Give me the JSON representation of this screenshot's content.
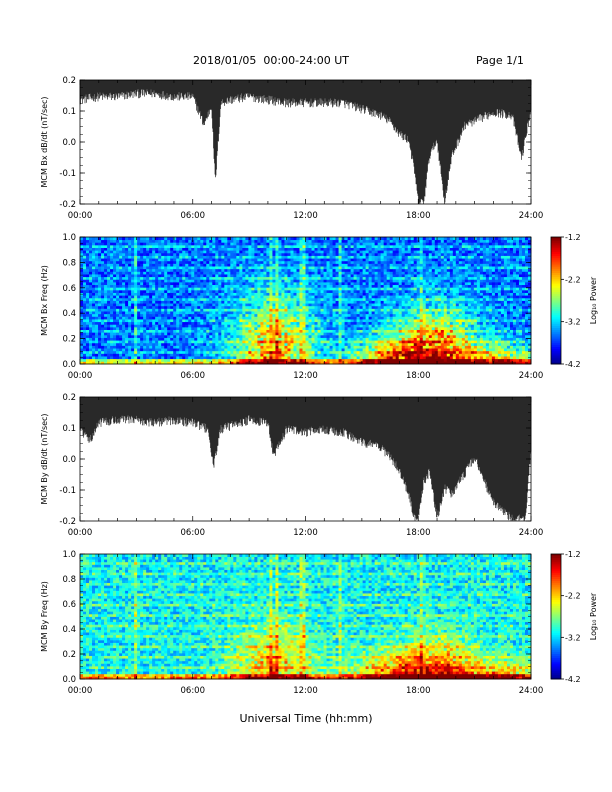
{
  "header": {
    "title": "2018/01/05  00:00-24:00 UT",
    "page": "Page 1/1"
  },
  "footer": {
    "xlabel": "Universal Time (hh:mm)"
  },
  "chart_data": [
    {
      "type": "line",
      "ylabel": "MCM Bx dB/dt (nT/sec)",
      "xlim": [
        0,
        24
      ],
      "ylim": [
        -0.2,
        0.2
      ],
      "x_ticks": [
        "00:00",
        "06:00",
        "12:00",
        "18:00",
        "24:00"
      ],
      "y_ticks": [
        "-0.2",
        "-0.1",
        "0.0",
        "0.1",
        "0.2"
      ],
      "series": [
        {
          "x": [
            0,
            1,
            2,
            3,
            4,
            5,
            6,
            6.6,
            7,
            7.2,
            7.5,
            8,
            9,
            10,
            11,
            12,
            13,
            14,
            15,
            16,
            16.5,
            17,
            17.5,
            17.8,
            18,
            18.3,
            18.6,
            19,
            19.4,
            19.8,
            20.5,
            21,
            22,
            23,
            23.5,
            24
          ],
          "upper": [
            0.2,
            0.2,
            0.2,
            0.2,
            0.2,
            0.2,
            0.2,
            0.2,
            0.2,
            0.2,
            0.2,
            0.2,
            0.2,
            0.2,
            0.2,
            0.2,
            0.2,
            0.2,
            0.2,
            0.2,
            0.2,
            0.2,
            0.2,
            0.2,
            0.2,
            0.2,
            0.2,
            0.2,
            0.2,
            0.2,
            0.2,
            0.2,
            0.2,
            0.2,
            0.2,
            0.2
          ],
          "lower": [
            0.13,
            0.14,
            0.14,
            0.15,
            0.15,
            0.14,
            0.14,
            0.05,
            0.11,
            -0.14,
            0.12,
            0.13,
            0.14,
            0.13,
            0.12,
            0.12,
            0.12,
            0.12,
            0.1,
            0.08,
            0.06,
            0.02,
            0.0,
            -0.1,
            -0.2,
            -0.2,
            -0.05,
            0.0,
            -0.2,
            -0.05,
            0.05,
            0.06,
            0.09,
            0.08,
            -0.06,
            0.1
          ]
        }
      ]
    },
    {
      "type": "heatmap",
      "ylabel": "MCM Bx Freq (Hz)",
      "xlim": [
        0,
        24
      ],
      "ylim": [
        0.0,
        1.0
      ],
      "x_ticks": [
        "00:00",
        "06:00",
        "12:00",
        "18:00",
        "24:00"
      ],
      "y_ticks": [
        "0.0",
        "0.2",
        "0.4",
        "0.6",
        "0.8",
        "1.0"
      ],
      "colorbar": {
        "label": "Log₁₀ Power",
        "range": [
          -4.2,
          -1.2
        ],
        "ticks": [
          "-1.2",
          "-2.2",
          "-3.2",
          "-4.2"
        ]
      },
      "base_level": -3.5,
      "vertical_bands_hours": [
        3.0,
        10.2,
        10.5,
        11.8,
        13.8,
        18.2
      ],
      "activity_peaks": [
        {
          "x": 19.0,
          "y_extent": 0.4,
          "level": -2.2
        },
        {
          "x": 16.5,
          "y_extent": 0.2,
          "level": -2.6
        },
        {
          "x": 10.3,
          "y_extent": 0.5,
          "level": -2.5
        },
        {
          "x": 22.5,
          "y_extent": 0.15,
          "level": -2.8
        }
      ]
    },
    {
      "type": "line",
      "ylabel": "MCM By dB/dt (nT/sec)",
      "xlim": [
        0,
        24
      ],
      "ylim": [
        -0.2,
        0.2
      ],
      "x_ticks": [
        "00:00",
        "06:00",
        "12:00",
        "18:00",
        "24:00"
      ],
      "y_ticks": [
        "-0.2",
        "-0.1",
        "0.0",
        "0.1",
        "0.2"
      ],
      "series": [
        {
          "x": [
            0,
            0.5,
            1,
            2,
            3,
            4,
            5,
            6,
            6.8,
            7.1,
            7.5,
            8,
            9,
            10,
            10.3,
            11,
            12,
            13,
            14,
            15,
            16,
            16.5,
            17,
            17.5,
            17.8,
            18,
            18.3,
            18.6,
            19,
            19.4,
            19.8,
            20.5,
            21,
            22,
            23,
            23.3,
            23.7,
            24
          ],
          "upper": [
            0.2,
            0.2,
            0.2,
            0.2,
            0.2,
            0.2,
            0.2,
            0.2,
            0.2,
            0.2,
            0.2,
            0.2,
            0.2,
            0.2,
            0.2,
            0.2,
            0.2,
            0.2,
            0.2,
            0.2,
            0.2,
            0.2,
            0.2,
            0.2,
            0.2,
            0.2,
            0.2,
            0.2,
            0.2,
            0.2,
            0.2,
            0.2,
            0.2,
            0.2,
            0.2,
            0.2,
            0.2,
            0.2
          ],
          "lower": [
            0.09,
            0.05,
            0.11,
            0.12,
            0.12,
            0.11,
            0.12,
            0.11,
            0.09,
            -0.03,
            0.09,
            0.1,
            0.12,
            0.11,
            0.0,
            0.09,
            0.08,
            0.09,
            0.08,
            0.05,
            0.03,
            0.0,
            -0.04,
            -0.12,
            -0.2,
            -0.2,
            -0.08,
            -0.05,
            -0.2,
            -0.1,
            -0.12,
            -0.05,
            0.0,
            -0.15,
            -0.2,
            -0.2,
            -0.2,
            0.03
          ]
        }
      ]
    },
    {
      "type": "heatmap",
      "ylabel": "MCM By Freq (Hz)",
      "xlim": [
        0,
        24
      ],
      "ylim": [
        0.0,
        1.0
      ],
      "x_ticks": [
        "00:00",
        "06:00",
        "12:00",
        "18:00",
        "24:00"
      ],
      "y_ticks": [
        "0.0",
        "0.2",
        "0.4",
        "0.6",
        "0.8",
        "1.0"
      ],
      "colorbar": {
        "label": "Log₁₀ Power",
        "range": [
          -4.2,
          -1.2
        ],
        "ticks": [
          "-1.2",
          "-2.2",
          "-3.2",
          "-4.2"
        ]
      },
      "base_level": -3.1,
      "vertical_bands_hours": [
        3.0,
        10.2,
        10.5,
        11.8,
        13.8,
        18.2
      ],
      "activity_peaks": [
        {
          "x": 19.0,
          "y_extent": 0.3,
          "level": -2.3
        },
        {
          "x": 16.5,
          "y_extent": 0.2,
          "level": -2.6
        },
        {
          "x": 10.3,
          "y_extent": 0.4,
          "level": -2.6
        },
        {
          "x": 22.5,
          "y_extent": 0.15,
          "level": -2.6
        }
      ]
    }
  ]
}
